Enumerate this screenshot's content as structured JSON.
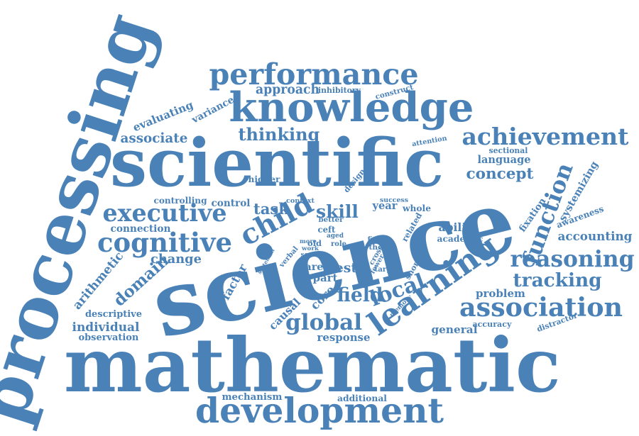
{
  "cloud": {
    "color": "#4a82b8",
    "words": [
      {
        "text": "processing",
        "weight": 1.0
      },
      {
        "text": "science",
        "weight": 1.0
      },
      {
        "text": "mathematic",
        "weight": 0.95
      },
      {
        "text": "scientific",
        "weight": 0.85
      },
      {
        "text": "knowledge",
        "weight": 0.6
      },
      {
        "text": "development",
        "weight": 0.5
      },
      {
        "text": "learning",
        "weight": 0.5
      },
      {
        "text": "performance",
        "weight": 0.45
      },
      {
        "text": "achievement",
        "weight": 0.4
      },
      {
        "text": "executive",
        "weight": 0.4
      },
      {
        "text": "cognitive",
        "weight": 0.4
      },
      {
        "text": "child",
        "weight": 0.4
      },
      {
        "text": "reasoning",
        "weight": 0.35
      },
      {
        "text": "association",
        "weight": 0.35
      },
      {
        "text": "global",
        "weight": 0.35
      },
      {
        "text": "field",
        "weight": 0.35
      },
      {
        "text": "function",
        "weight": 0.3
      },
      {
        "text": "local",
        "weight": 0.3
      },
      {
        "text": "thinking",
        "weight": 0.25
      },
      {
        "text": "concept",
        "weight": 0.25
      },
      {
        "text": "skill",
        "weight": 0.25
      },
      {
        "text": "tracking",
        "weight": 0.25
      },
      {
        "text": "task",
        "weight": 0.2
      },
      {
        "text": "associate",
        "weight": 0.18
      },
      {
        "text": "evaluating",
        "weight": 0.18
      },
      {
        "text": "domain",
        "weight": 0.18
      },
      {
        "text": "arithmetic",
        "weight": 0.16
      },
      {
        "text": "general",
        "weight": 0.16
      },
      {
        "text": "accounting",
        "weight": 0.16
      },
      {
        "text": "change",
        "weight": 0.15
      },
      {
        "text": "response",
        "weight": 0.15
      },
      {
        "text": "mechanism",
        "weight": 0.14
      },
      {
        "text": "individual",
        "weight": 0.14
      },
      {
        "text": "observation",
        "weight": 0.14
      },
      {
        "text": "descriptive",
        "weight": 0.14
      },
      {
        "text": "variance",
        "weight": 0.13
      },
      {
        "text": "approach",
        "weight": 0.13
      },
      {
        "text": "causal",
        "weight": 0.13
      },
      {
        "text": "core",
        "weight": 0.13
      },
      {
        "text": "test",
        "weight": 0.13
      },
      {
        "text": "problem",
        "weight": 0.13
      },
      {
        "text": "language",
        "weight": 0.13
      },
      {
        "text": "factor",
        "weight": 0.12
      },
      {
        "text": "connection",
        "weight": 0.12
      },
      {
        "text": "controlling",
        "weight": 0.12
      },
      {
        "text": "control",
        "weight": 0.12
      },
      {
        "text": "ability",
        "weight": 0.12
      },
      {
        "text": "awareness",
        "weight": 0.12
      },
      {
        "text": "systemizing",
        "weight": 0.11
      },
      {
        "text": "fixation",
        "weight": 0.11
      },
      {
        "text": "academic",
        "weight": 0.11
      },
      {
        "text": "year",
        "weight": 0.11
      },
      {
        "text": "part",
        "weight": 0.11
      },
      {
        "text": "area",
        "weight": 0.11
      },
      {
        "text": "additional",
        "weight": 0.1
      },
      {
        "text": "accuracy",
        "weight": 0.1
      },
      {
        "text": "distractor",
        "weight": 0.1
      },
      {
        "text": "sectional",
        "weight": 0.1
      },
      {
        "text": "higher",
        "weight": 0.1
      },
      {
        "text": "inhibitory",
        "weight": 0.1
      },
      {
        "text": "construct",
        "weight": 0.1
      },
      {
        "text": "attention",
        "weight": 0.09
      },
      {
        "text": "whole",
        "weight": 0.09
      },
      {
        "text": "success",
        "weight": 0.08
      },
      {
        "text": "better",
        "weight": 0.08
      },
      {
        "text": "related",
        "weight": 0.08
      },
      {
        "text": "design",
        "weight": 0.08
      },
      {
        "text": "ceft",
        "weight": 0.08
      },
      {
        "text": "figure",
        "weight": 0.08
      },
      {
        "text": "thesis",
        "weight": 0.08
      },
      {
        "text": "memory",
        "weight": 0.08
      },
      {
        "text": "shorter",
        "weight": 0.08
      },
      {
        "text": "target",
        "weight": 0.07
      },
      {
        "text": "context",
        "weight": 0.07
      },
      {
        "text": "verbal",
        "weight": 0.07
      },
      {
        "text": "systemati",
        "weight": 0.06
      },
      {
        "text": "score",
        "weight": 0.06
      },
      {
        "text": "work",
        "weight": 0.06
      },
      {
        "text": "old",
        "weight": 0.06
      },
      {
        "text": "more",
        "weight": 0.06
      },
      {
        "text": "aged",
        "weight": 0.06
      },
      {
        "text": "role",
        "weight": 0.06
      },
      {
        "text": "cross",
        "weight": 0.06
      },
      {
        "text": "fewer",
        "weight": 0.06
      }
    ]
  }
}
